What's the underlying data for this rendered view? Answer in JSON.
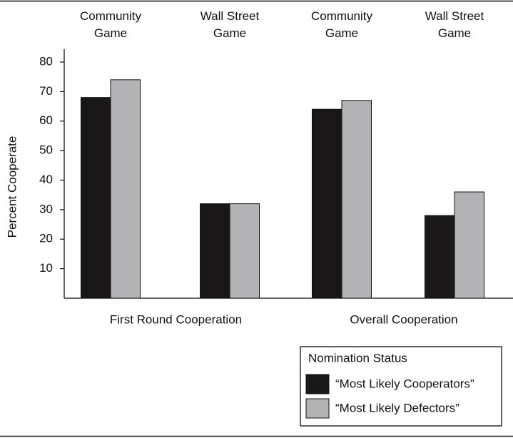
{
  "chart_data": {
    "type": "bar",
    "categories": [
      "Community Game",
      "Wall Street Game",
      "Community Game",
      "Wall Street Game"
    ],
    "group_labels": [
      "First Round Cooperation",
      "Overall Cooperation"
    ],
    "y_label": "Percent Cooperate",
    "series": [
      {
        "name": "“Most Likely Cooperators”",
        "color": "#1a1718",
        "values": [
          68,
          32,
          64,
          28
        ]
      },
      {
        "name": "“Most Likely Defectors”",
        "color": "#b3b3b6",
        "values": [
          74,
          32,
          67,
          36
        ]
      }
    ],
    "legend_title": "Nomination Status",
    "legend_position": "lower right",
    "ylim": [
      0,
      80
    ],
    "yticks": [
      10,
      20,
      30,
      40,
      50,
      60,
      70,
      80
    ],
    "grid": false
  }
}
